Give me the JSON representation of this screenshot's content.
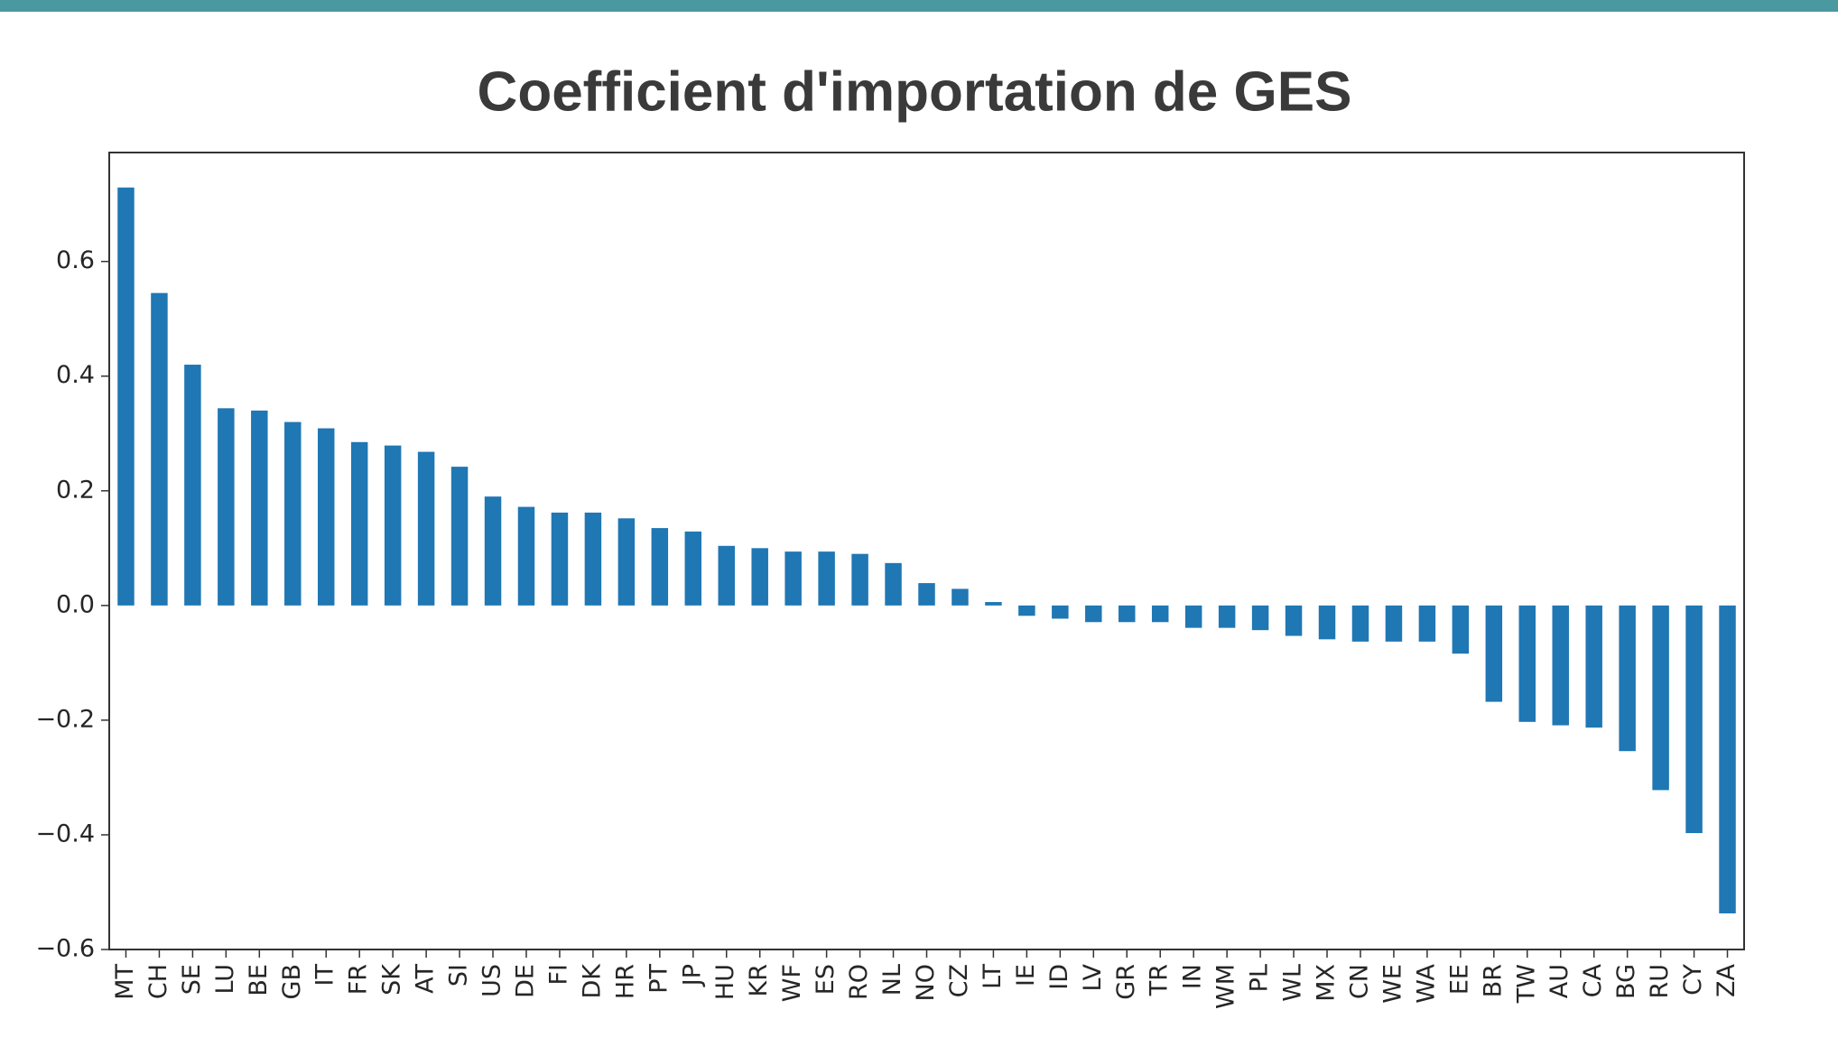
{
  "chart_data": {
    "type": "bar",
    "title": "Coefficient d'importation de GES",
    "categories": [
      "MT",
      "CH",
      "SE",
      "LU",
      "BE",
      "GB",
      "IT",
      "FR",
      "SK",
      "AT",
      "SI",
      "US",
      "DE",
      "FI",
      "DK",
      "HR",
      "PT",
      "JP",
      "HU",
      "KR",
      "WF",
      "ES",
      "RO",
      "NL",
      "NO",
      "CZ",
      "LT",
      "IE",
      "ID",
      "LV",
      "GR",
      "TR",
      "IN",
      "WM",
      "PL",
      "WL",
      "MX",
      "CN",
      "WE",
      "WA",
      "EE",
      "BR",
      "TW",
      "AU",
      "CA",
      "BG",
      "RU",
      "CY",
      "ZA"
    ],
    "values": [
      0.729,
      0.545,
      0.42,
      0.344,
      0.34,
      0.32,
      0.309,
      0.285,
      0.279,
      0.268,
      0.242,
      0.19,
      0.172,
      0.162,
      0.162,
      0.152,
      0.135,
      0.129,
      0.104,
      0.1,
      0.094,
      0.094,
      0.09,
      0.074,
      0.039,
      0.029,
      0.006,
      -0.018,
      -0.023,
      -0.029,
      -0.029,
      -0.029,
      -0.039,
      -0.039,
      -0.043,
      -0.053,
      -0.059,
      -0.063,
      -0.063,
      -0.063,
      -0.084,
      -0.168,
      -0.203,
      -0.209,
      -0.213,
      -0.254,
      -0.322,
      -0.397,
      -0.537
    ],
    "color": "#1f77b4",
    "ylim": [
      -0.6,
      0.79
    ],
    "yticks": [
      {
        "value": -0.6,
        "label": "−0.6"
      },
      {
        "value": -0.4,
        "label": "−0.4"
      },
      {
        "value": -0.2,
        "label": "−0.2"
      },
      {
        "value": 0,
        "label": "0.0"
      },
      0.2,
      0.4,
      0.6
    ],
    "grid": false
  }
}
